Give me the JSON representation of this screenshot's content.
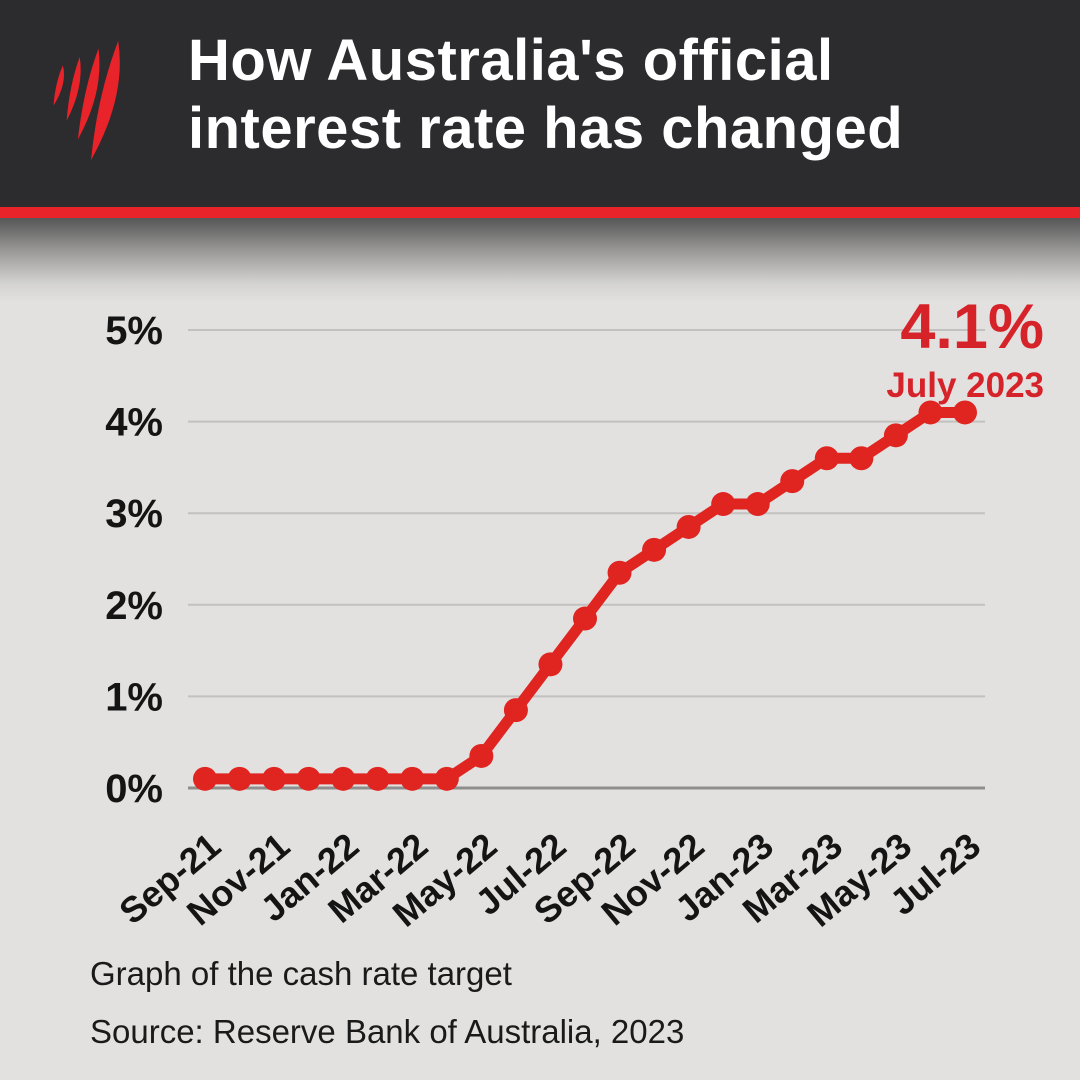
{
  "header": {
    "title_line1": "How Australia's official",
    "title_line2": "interest rate has changed",
    "logo_icon": "sbs-flame-logo"
  },
  "annotation": {
    "value": "4.1%",
    "date": "July 2023"
  },
  "footer": {
    "caption": "Graph of the cash rate target",
    "source": "Source: Reserve Bank of Australia, 2023"
  },
  "colors": {
    "header_bg": "#2c2b2e",
    "brand_red": "#e8232a",
    "line": "#e02420",
    "annotation": "#d6232a",
    "grid": "#c2c1c0",
    "axis": "#8f8e8d",
    "tick_text": "#141414",
    "bg": "#e2e1e0"
  },
  "chart_data": {
    "type": "line",
    "title": "How Australia's official interest rate has changed",
    "series_name": "Cash rate target",
    "x": [
      "Sep-21",
      "Oct-21",
      "Nov-21",
      "Dec-21",
      "Jan-22",
      "Feb-22",
      "Mar-22",
      "Apr-22",
      "May-22",
      "Jun-22",
      "Jul-22",
      "Aug-22",
      "Sep-22",
      "Oct-22",
      "Nov-22",
      "Dec-22",
      "Jan-23",
      "Feb-23",
      "Mar-23",
      "Apr-23",
      "May-23",
      "Jun-23",
      "Jul-23"
    ],
    "values": [
      0.1,
      0.1,
      0.1,
      0.1,
      0.1,
      0.1,
      0.1,
      0.1,
      0.35,
      0.85,
      1.35,
      1.85,
      2.35,
      2.6,
      2.85,
      3.1,
      3.1,
      3.35,
      3.6,
      3.6,
      3.85,
      4.1,
      4.1
    ],
    "x_tick_labels": [
      "Sep-21",
      "Nov-21",
      "Jan-22",
      "Mar-22",
      "May-22",
      "Jul-22",
      "Sep-22",
      "Nov-22",
      "Jan-23",
      "Mar-23",
      "May-23",
      "Jul-23"
    ],
    "x_tick_every": 2,
    "y_ticks": [
      "0%",
      "1%",
      "2%",
      "3%",
      "4%",
      "5%"
    ],
    "ylim": [
      0,
      5
    ],
    "xlabel": "",
    "ylabel": "",
    "grid": true,
    "legend": "none",
    "annotation": {
      "text": "4.1%",
      "subtext": "July 2023",
      "at_x": "Jul-23",
      "at_y": 4.1
    }
  }
}
